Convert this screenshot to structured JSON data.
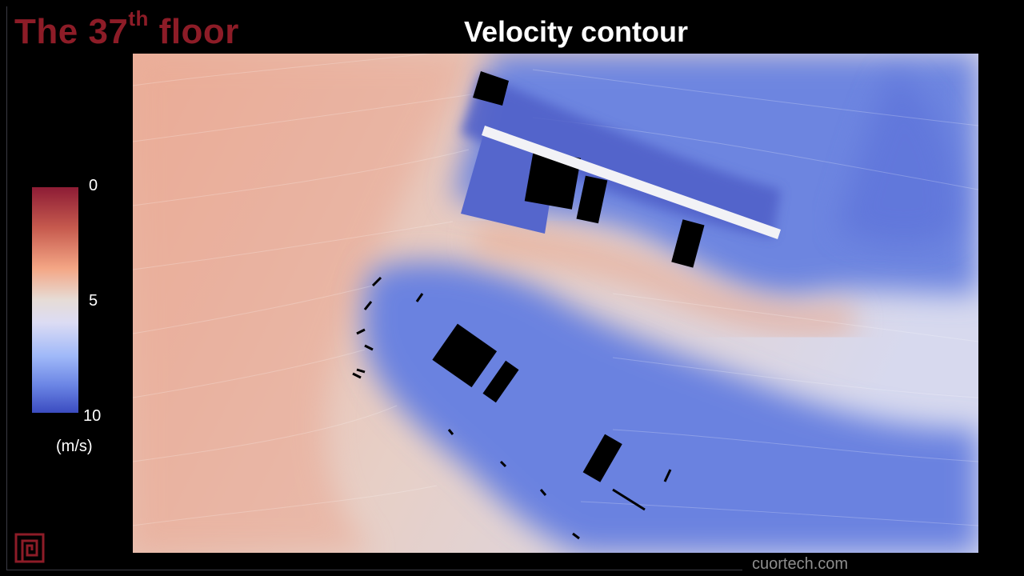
{
  "header": {
    "floor_title_main": "The 37",
    "floor_title_sup": "th",
    "floor_title_tail": " floor",
    "contour_title": "Velocity contour"
  },
  "legend": {
    "label_top": "0",
    "label_mid": "5",
    "label_bottom": "10",
    "unit": "(m/s)",
    "scale_min": 0,
    "scale_mid": 5,
    "scale_max": 10,
    "colors": [
      "#8d1c35",
      "#c65a4e",
      "#f4a685",
      "#e6dcd6",
      "#dcdcf4",
      "#9fb8f8",
      "#6a84e4",
      "#3b4cc0"
    ]
  },
  "footer": {
    "site_url": "cuortech.com"
  },
  "theme": {
    "title_color": "#8d1c27",
    "background": "#000000",
    "url_color": "#8e8e8e"
  },
  "icons": {
    "logo": "square-spiral-logo-icon"
  }
}
